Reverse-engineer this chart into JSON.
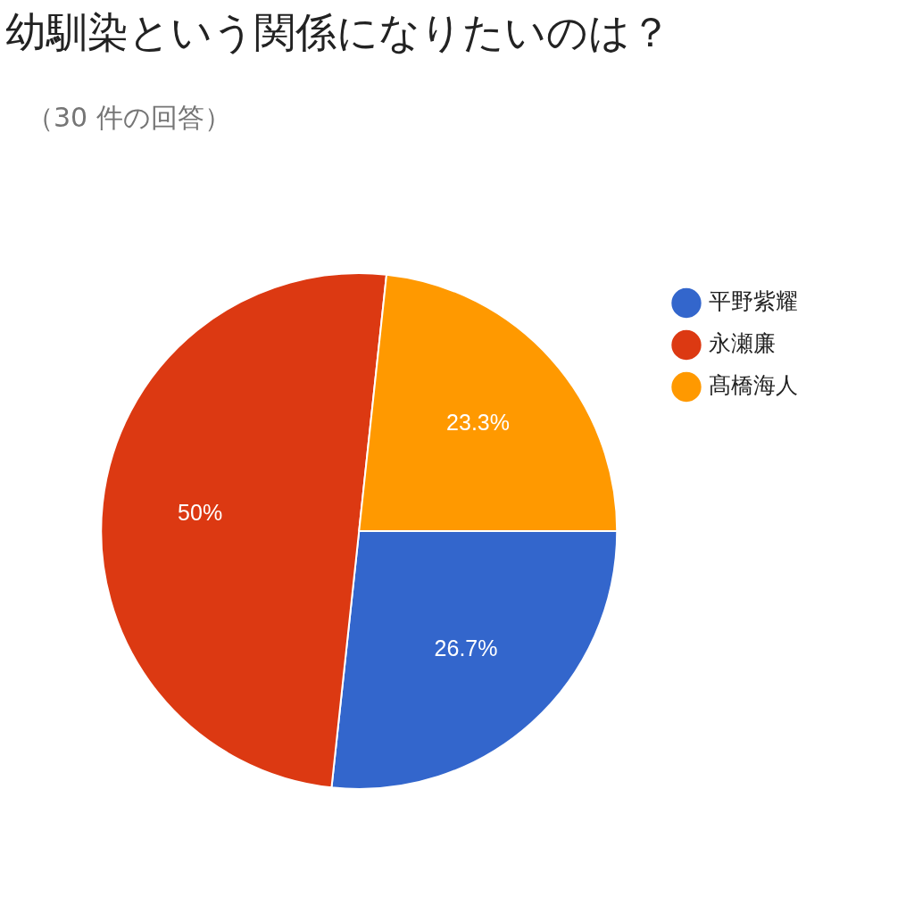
{
  "chart_data": {
    "type": "pie",
    "title": "幼馴染という関係になりたいのは？",
    "subtitle": "（30 件の回答）",
    "categories": [
      "平野紫耀",
      "永瀬廉",
      "髙橋海人"
    ],
    "values": [
      26.7,
      50,
      23.3
    ],
    "value_labels": [
      "26.7%",
      "50%",
      "23.3%"
    ],
    "colors": [
      "#3366cc",
      "#dc3912",
      "#ff9900"
    ],
    "legend": "right"
  }
}
